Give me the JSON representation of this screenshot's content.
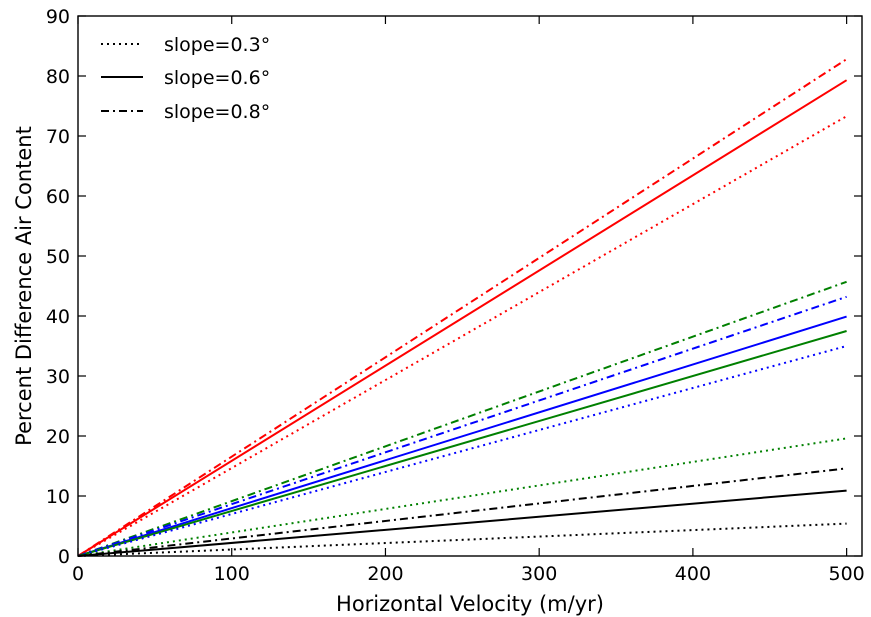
{
  "chart_data": {
    "type": "line",
    "title": "",
    "xlabel": "Horizontal Velocity (m/yr)",
    "ylabel": "Percent Difference Air Content",
    "xlim": [
      0,
      510
    ],
    "ylim": [
      0,
      90
    ],
    "xticks": [
      0,
      100,
      200,
      300,
      400,
      500
    ],
    "yticks": [
      0,
      10,
      20,
      30,
      40,
      50,
      60,
      70,
      80,
      90
    ],
    "grid": false,
    "legend": {
      "placement": "top-left",
      "entries": [
        {
          "label": "slope=0.3°",
          "linestyle": "dotted"
        },
        {
          "label": "slope=0.6°",
          "linestyle": "solid"
        },
        {
          "label": "slope=0.8°",
          "linestyle": "dashdot"
        }
      ]
    },
    "colors": {
      "red": "#ff0000",
      "blue": "#0000ff",
      "green": "#008000",
      "black": "#000000"
    },
    "x": [
      0,
      500
    ],
    "series": [
      {
        "color": "red",
        "linestyle": "dashdot",
        "values": [
          0,
          82.8
        ]
      },
      {
        "color": "red",
        "linestyle": "solid",
        "values": [
          0,
          79.3
        ]
      },
      {
        "color": "red",
        "linestyle": "dotted",
        "values": [
          0,
          73.3
        ]
      },
      {
        "color": "green",
        "linestyle": "dashdot",
        "values": [
          0,
          45.7
        ]
      },
      {
        "color": "blue",
        "linestyle": "dashdot",
        "values": [
          0,
          43.2
        ]
      },
      {
        "color": "blue",
        "linestyle": "solid",
        "values": [
          0,
          39.9
        ]
      },
      {
        "color": "green",
        "linestyle": "solid",
        "values": [
          0,
          37.5
        ]
      },
      {
        "color": "blue",
        "linestyle": "dotted",
        "values": [
          0,
          35.0
        ]
      },
      {
        "color": "green",
        "linestyle": "dotted",
        "values": [
          0,
          19.6
        ]
      },
      {
        "color": "black",
        "linestyle": "dashdot",
        "values": [
          0,
          14.6
        ]
      },
      {
        "color": "black",
        "linestyle": "solid",
        "values": [
          0,
          10.9
        ]
      },
      {
        "color": "black",
        "linestyle": "dotted",
        "values": [
          0,
          5.4
        ]
      }
    ]
  }
}
